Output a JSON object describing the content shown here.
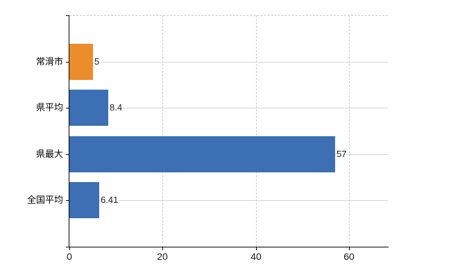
{
  "chart": {
    "background_color": "#ffffff",
    "axis_color": "#000000",
    "horizontal_grid_color": "#d2d8d2",
    "vertical_grid_color": "#c9cfc9",
    "top_border_color": "#c6ccc6",
    "text_color": "#1a1a1a"
  },
  "chart_data": {
    "type": "bar",
    "orientation": "horizontal",
    "title": "",
    "xlabel": "",
    "ylabel": "",
    "categories": [
      "常滑市",
      "県平均",
      "県最大",
      "全国平均"
    ],
    "values": [
      5,
      8.4,
      57,
      6.41
    ],
    "value_labels": [
      "5",
      "8.4",
      "57",
      "6.41"
    ],
    "bar_colors": [
      "#eb8c2d",
      "#3c6fb3",
      "#3c6fb3",
      "#3c6fb3"
    ],
    "highlight_color": "#eb8c2d",
    "series_color": "#3c6fb3",
    "x_ticks": [
      0,
      20,
      40,
      60
    ],
    "x_tick_labels": [
      "0",
      "20",
      "40",
      "60"
    ],
    "xlim": [
      0,
      68.5
    ],
    "grid": true,
    "legend": false
  }
}
